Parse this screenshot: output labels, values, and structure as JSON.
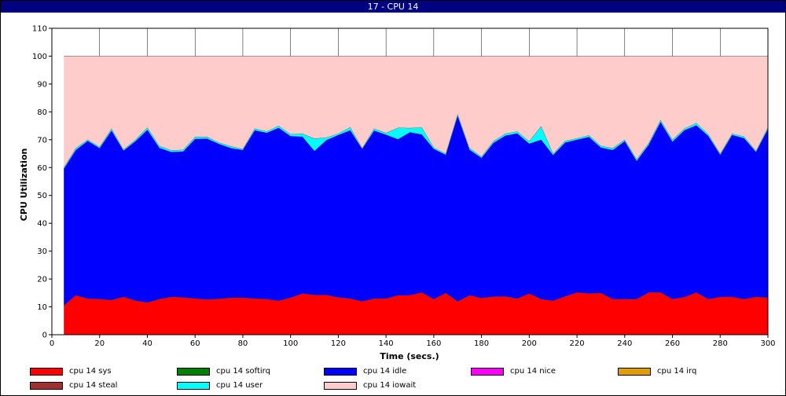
{
  "window": {
    "title": "17 - CPU 14"
  },
  "chart_data": {
    "type": "area",
    "stacked": true,
    "xlabel": "Time (secs.)",
    "ylabel": "CPU Utilization",
    "xlim": [
      0,
      300
    ],
    "ylim": [
      0,
      110
    ],
    "xticks": [
      0,
      20,
      40,
      60,
      80,
      100,
      120,
      140,
      160,
      180,
      200,
      220,
      240,
      260,
      280,
      300
    ],
    "yticks": [
      0,
      10,
      20,
      30,
      40,
      50,
      60,
      70,
      80,
      90,
      100,
      110
    ],
    "grid": true,
    "legend_position": "bottom",
    "x": [
      5,
      10,
      15,
      20,
      25,
      30,
      35,
      40,
      45,
      50,
      55,
      60,
      65,
      70,
      75,
      80,
      85,
      90,
      95,
      100,
      105,
      110,
      115,
      120,
      125,
      130,
      135,
      140,
      145,
      150,
      155,
      160,
      165,
      170,
      175,
      180,
      185,
      190,
      195,
      200,
      205,
      210,
      215,
      220,
      225,
      230,
      235,
      240,
      245,
      250,
      255,
      260,
      265,
      270,
      275,
      280,
      285,
      290,
      295,
      300
    ],
    "series": [
      {
        "name": "cpu 14 sys",
        "color": "#ff0000",
        "values": [
          10.5,
          14.2,
          13.0,
          12.8,
          12.5,
          13.6,
          12.3,
          11.6,
          12.8,
          13.6,
          13.4,
          13.0,
          12.7,
          12.9,
          13.3,
          13.3,
          13.0,
          12.8,
          12.2,
          13.3,
          14.8,
          14.3,
          14.3,
          13.4,
          13.0,
          12.0,
          13.0,
          13.0,
          14.2,
          14.2,
          15.2,
          12.8,
          15.0,
          12.0,
          14.2,
          13.2,
          13.7,
          13.8,
          13.0,
          14.8,
          12.8,
          12.2,
          13.8,
          15.2,
          14.8,
          15.0,
          12.8,
          12.8,
          12.8,
          15.2,
          15.2,
          12.8,
          13.5,
          15.2,
          12.8,
          13.6,
          13.6,
          12.8,
          13.6,
          13.3
        ]
      },
      {
        "name": "cpu 14 softirq",
        "color": "#008000",
        "values": [
          0,
          0,
          0,
          0,
          0,
          0,
          0,
          0,
          0,
          0,
          0,
          0,
          0,
          0,
          0,
          0,
          0,
          0,
          0,
          0,
          0,
          0,
          0,
          0,
          0,
          0,
          0,
          0,
          0,
          0,
          0,
          0,
          0,
          0,
          0,
          0,
          0,
          0,
          0,
          0,
          0,
          0,
          0,
          0,
          0,
          0,
          0,
          0,
          0,
          0,
          0,
          0,
          0,
          0,
          0,
          0,
          0,
          0,
          0,
          0
        ]
      },
      {
        "name": "cpu 14 idle",
        "color": "#0000ff",
        "values": [
          49.0,
          52.1,
          56.6,
          54.2,
          60.8,
          52.5,
          57.2,
          62.0,
          54.3,
          52.0,
          52.4,
          57.3,
          57.7,
          55.6,
          53.7,
          53.0,
          60.4,
          59.7,
          62.1,
          58.0,
          56.3,
          51.7,
          55.6,
          58.3,
          60.4,
          54.7,
          60.3,
          58.8,
          56.0,
          58.5,
          56.7,
          53.9,
          49.6,
          66.6,
          52.2,
          50.3,
          55.2,
          57.7,
          59.3,
          53.8,
          57.2,
          52.3,
          55.2,
          54.8,
          56.2,
          52.2,
          53.5,
          56.7,
          49.6,
          53.0,
          61.2,
          56.5,
          59.9,
          60.0,
          58.6,
          51.0,
          58.1,
          57.8,
          52.0,
          60.6
        ]
      },
      {
        "name": "cpu 14 nice",
        "color": "#ff00ff",
        "values": [
          0,
          0,
          0,
          0,
          0,
          0,
          0,
          0,
          0,
          0,
          0,
          0,
          0,
          0,
          0,
          0,
          0,
          0,
          0,
          0,
          0,
          0,
          0,
          0,
          0,
          0,
          0,
          0,
          0,
          0,
          0,
          0,
          0,
          0,
          0,
          0,
          0,
          0,
          0,
          0,
          0,
          0,
          0,
          0,
          0,
          0,
          0,
          0,
          0,
          0,
          0,
          0,
          0,
          0,
          0,
          0,
          0,
          0,
          0,
          0
        ]
      },
      {
        "name": "cpu 14 irq",
        "color": "#e09e00",
        "values": [
          0,
          0,
          0,
          0,
          0,
          0,
          0,
          0,
          0,
          0,
          0,
          0,
          0,
          0,
          0,
          0,
          0,
          0,
          0,
          0,
          0,
          0,
          0,
          0,
          0,
          0,
          0,
          0,
          0,
          0,
          0,
          0,
          0,
          0,
          0,
          0,
          0,
          0,
          0,
          0,
          0,
          0,
          0,
          0,
          0,
          0,
          0,
          0,
          0,
          0,
          0,
          0,
          0,
          0,
          0,
          0,
          0,
          0,
          0,
          0
        ]
      },
      {
        "name": "cpu 14 steal",
        "color": "#a03030",
        "values": [
          0,
          0,
          0,
          0,
          0,
          0,
          0,
          0,
          0,
          0,
          0,
          0,
          0,
          0,
          0,
          0,
          0,
          0,
          0,
          0,
          0,
          0,
          0,
          0,
          0,
          0,
          0,
          0,
          0,
          0,
          0,
          0,
          0,
          0,
          0,
          0,
          0,
          0,
          0,
          0,
          0,
          0,
          0,
          0,
          0,
          0,
          0,
          0,
          0,
          0,
          0,
          0,
          0,
          0,
          0,
          0,
          0,
          0,
          0,
          0
        ]
      },
      {
        "name": "cpu 14 user",
        "color": "#00ffff",
        "values": [
          0.5,
          0.7,
          0.4,
          0.5,
          0.7,
          0.4,
          0.5,
          0.8,
          0.7,
          0.6,
          0.6,
          0.7,
          0.6,
          0.5,
          0.6,
          0.4,
          0.6,
          0.5,
          0.7,
          0.7,
          1.1,
          4.4,
          0.9,
          0.5,
          1.1,
          0.3,
          0.7,
          0.6,
          4.1,
          1.5,
          2.5,
          0.5,
          0.4,
          0.6,
          0.6,
          0.5,
          0.6,
          0.7,
          0.7,
          0.9,
          4.8,
          0.5,
          0.6,
          0.5,
          0.6,
          0.6,
          0.7,
          0.5,
          0.6,
          0.6,
          0.7,
          0.7,
          0.6,
          0.8,
          0.6,
          0.4,
          0.5,
          0.6,
          0.4,
          0.6
        ]
      },
      {
        "name": "cpu 14 iowait",
        "color": "#ffcccc",
        "values": [
          40.0,
          33.0,
          30.0,
          32.5,
          26.0,
          33.5,
          30.0,
          25.6,
          32.2,
          33.8,
          33.6,
          29.0,
          29.0,
          31.0,
          32.4,
          33.3,
          26.0,
          27.0,
          25.0,
          28.0,
          27.8,
          29.6,
          29.2,
          27.8,
          25.5,
          33.0,
          26.0,
          27.6,
          25.7,
          25.8,
          25.6,
          32.8,
          35.0,
          20.8,
          33.0,
          36.0,
          30.5,
          27.8,
          27.0,
          30.5,
          25.2,
          35.0,
          30.4,
          29.5,
          28.4,
          32.2,
          33.0,
          30.0,
          37.0,
          31.2,
          22.9,
          30.0,
          26.0,
          24.0,
          28.0,
          35.0,
          27.8,
          28.8,
          34.0,
          25.5
        ]
      }
    ]
  }
}
